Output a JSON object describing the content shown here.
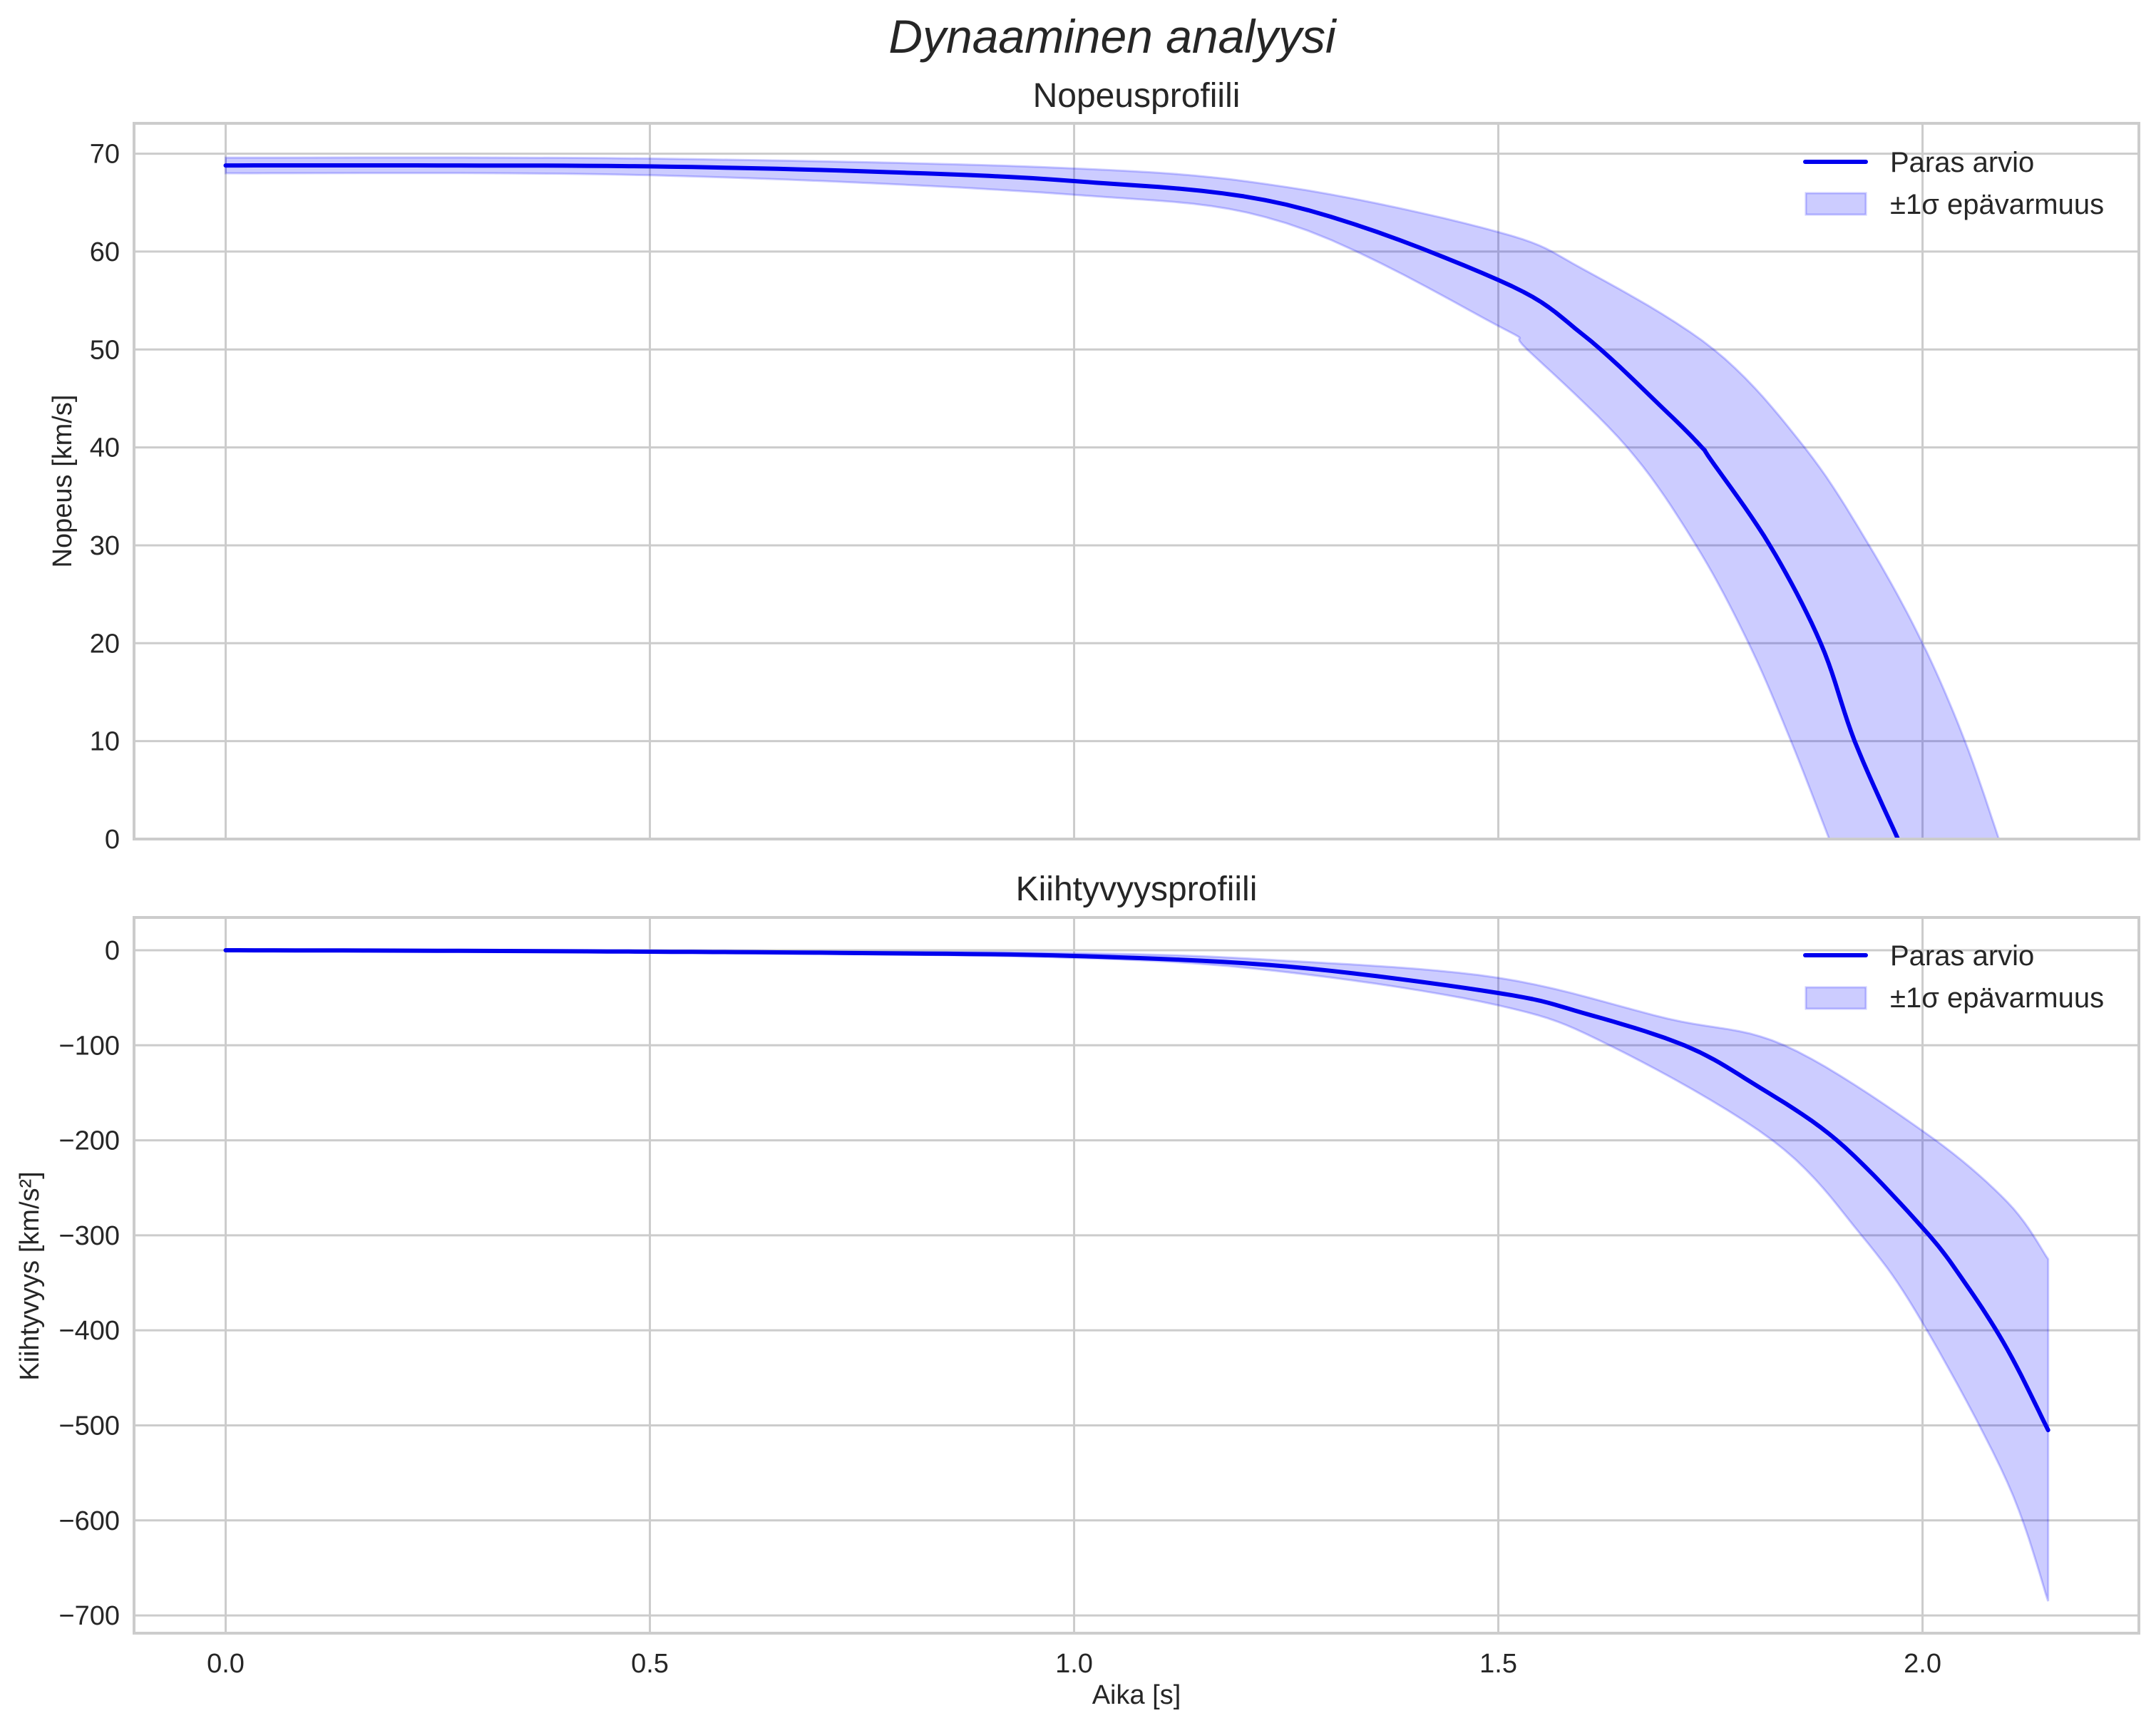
{
  "figure": {
    "suptitle": "Dynaaminen analyysi",
    "xlabel": "Aika [s]",
    "colors": {
      "line": "#0000ee",
      "band_fill": "#0000ff",
      "band_alpha": 0.2,
      "grid": "#cccccc",
      "text": "#262626"
    }
  },
  "chart_data": [
    {
      "type": "line",
      "title": "Nopeusprofiili",
      "xlabel": "",
      "ylabel": "Nopeus [km/s]",
      "xlim": [
        -0.108,
        2.255
      ],
      "ylim": [
        0,
        73.1
      ],
      "xticks": [
        0.0,
        0.5,
        1.0,
        1.5,
        2.0
      ],
      "xtick_labels": [
        "0.0",
        "0.5",
        "1.0",
        "1.5",
        "2.0"
      ],
      "yticks": [
        0,
        10,
        20,
        30,
        40,
        50,
        60,
        70
      ],
      "ytick_labels": [
        "0",
        "10",
        "20",
        "30",
        "40",
        "50",
        "60",
        "70"
      ],
      "grid": true,
      "legend": {
        "position": "upper right",
        "entries": [
          "Paras arvio",
          "±1σ epävarmuus"
        ]
      },
      "series": [
        {
          "name": "Paras arvio",
          "x": [
            0.0,
            0.25,
            0.5,
            0.75,
            1.0,
            1.25,
            1.5,
            1.6,
            1.7,
            1.74,
            1.75,
            1.82,
            1.88,
            1.92,
            1.971
          ],
          "values": [
            68.8,
            68.8,
            68.7,
            68.2,
            67.2,
            64.8,
            57.1,
            51.5,
            43.5,
            40.0,
            38.8,
            30.0,
            20.0,
            10.0,
            0.0
          ]
        },
        {
          "name": "±1σ epävarmuus (upper)",
          "x": [
            0.0,
            0.5,
            1.0,
            1.25,
            1.5,
            1.6,
            1.754,
            1.861,
            1.937,
            2.0,
            2.05,
            2.09
          ],
          "values": [
            69.6,
            69.5,
            68.5,
            66.6,
            62.0,
            58.2,
            50.0,
            40.0,
            30.0,
            20.0,
            10.0,
            0.0
          ]
        },
        {
          "name": "±1σ epävarmuus (lower)",
          "x": [
            0.0,
            0.5,
            1.0,
            1.25,
            1.5,
            1.534,
            1.652,
            1.733,
            1.795,
            1.845,
            1.89
          ],
          "values": [
            68.0,
            67.8,
            65.8,
            62.9,
            52.4,
            50.0,
            40.0,
            30.0,
            20.0,
            10.0,
            0.0
          ]
        }
      ]
    },
    {
      "type": "line",
      "title": "Kiihtyvyysprofiili",
      "xlabel": "Aika [s]",
      "ylabel": "Kiihtyvyys [km/s²]",
      "xlim": [
        -0.108,
        2.255
      ],
      "ylim": [
        -718.7,
        34.5
      ],
      "xticks": [
        0.0,
        0.5,
        1.0,
        1.5,
        2.0
      ],
      "xtick_labels": [
        "0.0",
        "0.5",
        "1.0",
        "1.5",
        "2.0"
      ],
      "yticks": [
        0,
        -100,
        -200,
        -300,
        -400,
        -500,
        -600,
        -700
      ],
      "ytick_labels": [
        "0",
        "−100",
        "−200",
        "−300",
        "−400",
        "−500",
        "−600",
        "−700"
      ],
      "grid": true,
      "legend": {
        "position": "upper right",
        "entries": [
          "Paras arvio",
          "±1σ epävarmuus"
        ]
      },
      "series": [
        {
          "name": "Paras arvio",
          "x": [
            0.0,
            0.25,
            0.5,
            0.75,
            1.0,
            1.25,
            1.5,
            1.6,
            1.719,
            1.8,
            1.899,
            2.0,
            2.05,
            2.1,
            2.148
          ],
          "values": [
            0.0,
            -0.5,
            -1.5,
            -3.0,
            -6.0,
            -17.0,
            -45.0,
            -66.0,
            -100.0,
            -140.0,
            -200.0,
            -292.0,
            -350.0,
            -420.0,
            -505.0
          ]
        },
        {
          "name": "±1σ epävarmuus (upper)",
          "x": [
            0.0,
            0.5,
            1.0,
            1.25,
            1.5,
            1.7,
            1.837,
            2.0,
            2.1,
            2.148
          ],
          "values": [
            0.0,
            -1.0,
            -3.0,
            -11.0,
            -29.0,
            -72.0,
            -100.0,
            -190.0,
            -265.0,
            -325.0
          ],
          "note": "band edge"
        },
        {
          "name": "±1σ epävarmuus (lower)",
          "x": [
            0.0,
            0.5,
            1.0,
            1.25,
            1.5,
            1.631,
            1.823,
            1.928,
            2.0,
            2.1,
            2.148
          ],
          "values": [
            0.0,
            -2.0,
            -8.0,
            -23.0,
            -58.0,
            -100.0,
            -200.0,
            -300.0,
            -392.0,
            -560.0,
            -685.0
          ],
          "note": "band edge"
        }
      ]
    }
  ]
}
